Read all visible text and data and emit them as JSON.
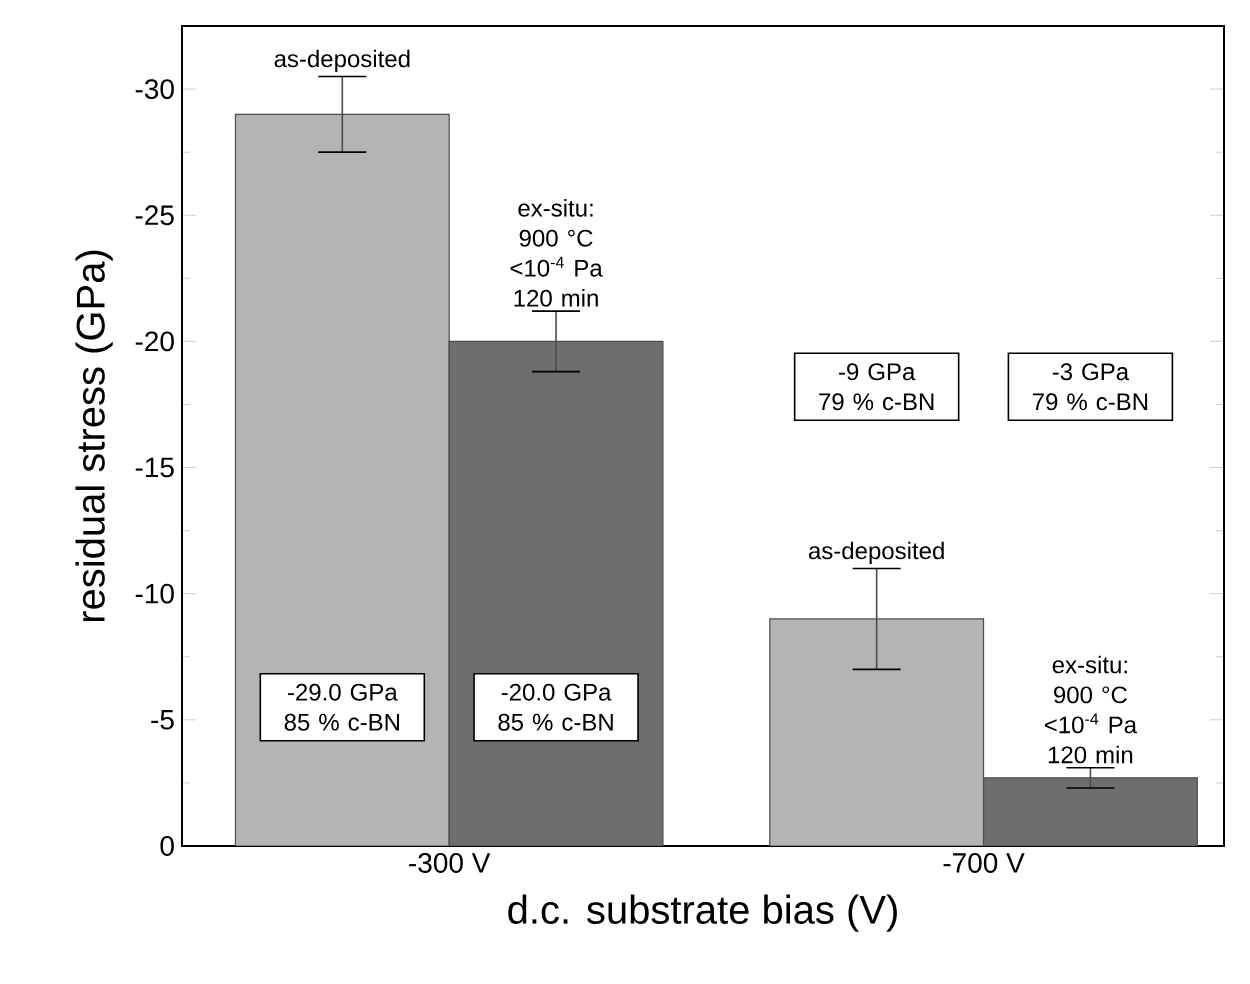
{
  "chart_data": {
    "type": "bar",
    "xlabel": "d.c. substrate bias (V)",
    "ylabel": "residual stress (GPa)",
    "categories": [
      "-300 V",
      "-700 V"
    ],
    "series": [
      {
        "name": "as-deposited",
        "color": "#b4b4b4",
        "values": [
          -29.0,
          -9.0
        ],
        "errors": [
          1.5,
          2.0
        ]
      },
      {
        "name": "ex-situ: 900 °C <10$^{-4}$ Pa 120 min",
        "color": "#6e6e6e",
        "values": [
          -20.0,
          -2.7
        ],
        "errors": [
          1.2,
          0.4
        ]
      }
    ],
    "ylim": [
      0,
      -32.5
    ],
    "yticks": [
      0,
      -5,
      -10,
      -15,
      -20,
      -25,
      -30,
      {
        "value": -2.5,
        "label": null
      },
      {
        "value": -7.5,
        "label": null
      },
      {
        "value": -12.5,
        "label": null
      },
      {
        "value": -17.5,
        "label": null
      },
      {
        "value": -22.5,
        "label": null
      },
      {
        "value": -27.5,
        "label": null
      },
      {
        "value": -32.5,
        "label": null
      }
    ],
    "annotations": [
      "-29.0 GPa 85 % c-BN",
      "-20.0 GPa 85 % c-BN",
      "-9 GPa 79 % c-BN",
      "-3 GPa 79 % c-BN"
    ]
  }
}
